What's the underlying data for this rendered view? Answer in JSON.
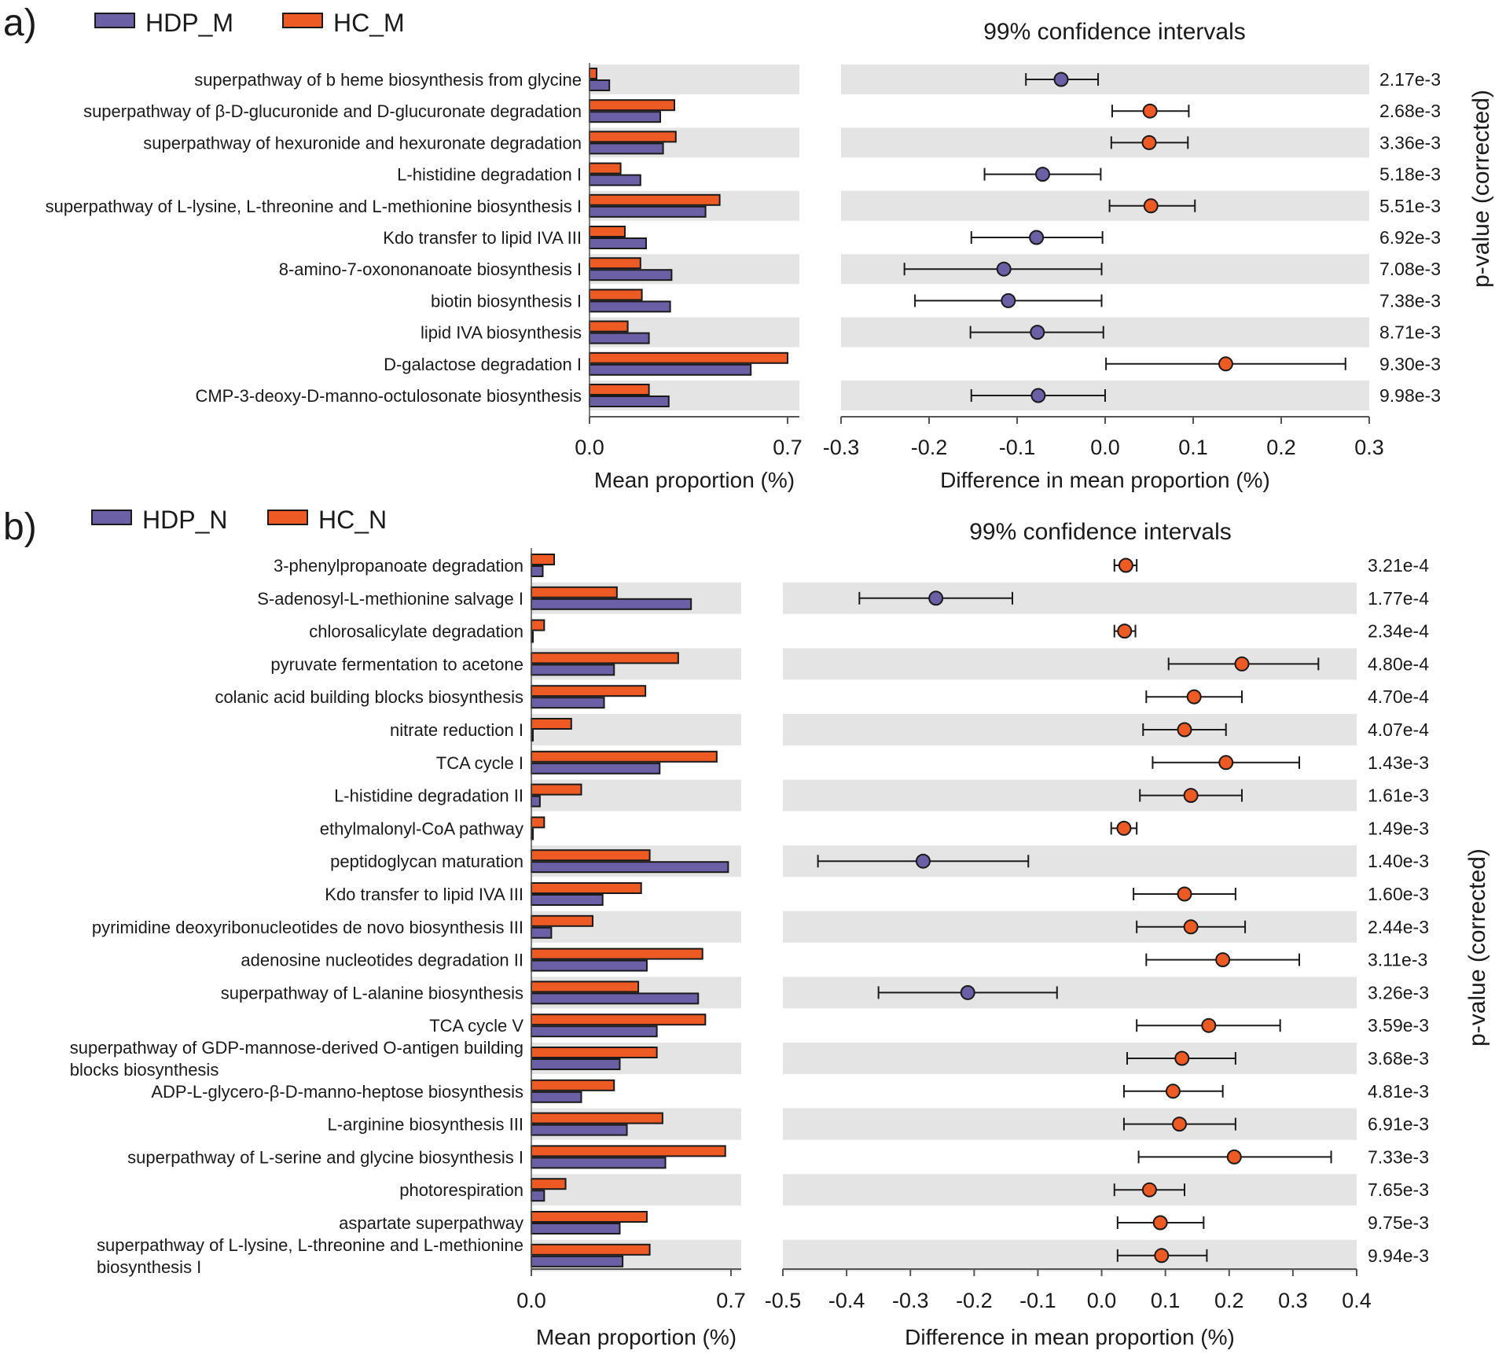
{
  "colors": {
    "hdp": "#6b5fa6",
    "hc": "#ee5a24",
    "band": "#e4e4e4",
    "axis": "#555555",
    "text": "#1a1a1a"
  },
  "chart_data": [
    {
      "type": "extended-error-bar",
      "panel_label": "a)",
      "legend": [
        "HDP_M",
        "HC_M"
      ],
      "ci_title": "99% confidence intervals",
      "bar_axis": {
        "xlabel": "Mean proportion (%)",
        "ticks": [
          "0.0",
          "0.7"
        ],
        "xlim": [
          0,
          0.7
        ]
      },
      "diff_axis": {
        "xlabel": "Difference in mean proportion (%)",
        "ticks": [
          "-0.3",
          "-0.2",
          "-0.1",
          "0.0",
          "0.1",
          "0.2",
          "0.3"
        ],
        "xlim": [
          -0.3,
          0.3
        ]
      },
      "pvalue_label": "p-value (corrected)",
      "rows": [
        {
          "name": "superpathway of b heme biosynthesis from glycine",
          "hdp": 0.07,
          "hc": 0.025,
          "diff": -0.05,
          "ci": [
            -0.09,
            -0.008
          ],
          "p": "2.17e-3"
        },
        {
          "name": "superpathway of β-D-glucuronide and D-glucuronate degradation",
          "hdp": 0.25,
          "hc": 0.3,
          "diff": 0.051,
          "ci": [
            0.008,
            0.095
          ],
          "p": "2.68e-3"
        },
        {
          "name": "superpathway of hexuronide and hexuronate degradation",
          "hdp": 0.26,
          "hc": 0.305,
          "diff": 0.05,
          "ci": [
            0.007,
            0.094
          ],
          "p": "3.36e-3"
        },
        {
          "name": "L-histidine degradation I",
          "hdp": 0.18,
          "hc": 0.11,
          "diff": -0.071,
          "ci": [
            -0.137,
            -0.005
          ],
          "p": "5.18e-3"
        },
        {
          "name": "superpathway of L-lysine, L-threonine and L-methionine biosynthesis I",
          "hdp": 0.41,
          "hc": 0.46,
          "diff": 0.052,
          "ci": [
            0.005,
            0.102
          ],
          "p": "5.51e-3"
        },
        {
          "name": "Kdo transfer to lipid IVA III",
          "hdp": 0.2,
          "hc": 0.125,
          "diff": -0.078,
          "ci": [
            -0.152,
            -0.003
          ],
          "p": "6.92e-3"
        },
        {
          "name": "8-amino-7-oxononanoate biosynthesis I",
          "hdp": 0.29,
          "hc": 0.18,
          "diff": -0.115,
          "ci": [
            -0.228,
            -0.004
          ],
          "p": "7.08e-3"
        },
        {
          "name": "biotin biosynthesis I",
          "hdp": 0.285,
          "hc": 0.185,
          "diff": -0.11,
          "ci": [
            -0.216,
            -0.004
          ],
          "p": "7.38e-3"
        },
        {
          "name": "lipid IVA biosynthesis",
          "hdp": 0.21,
          "hc": 0.135,
          "diff": -0.077,
          "ci": [
            -0.153,
            -0.002
          ],
          "p": "8.71e-3"
        },
        {
          "name": "D-galactose degradation I",
          "hdp": 0.57,
          "hc": 0.7,
          "diff": 0.137,
          "ci": [
            0.001,
            0.273
          ],
          "p": "9.30e-3"
        },
        {
          "name": "CMP-3-deoxy-D-manno-octulosonate biosynthesis",
          "hdp": 0.28,
          "hc": 0.21,
          "diff": -0.076,
          "ci": [
            -0.152,
            0.0
          ],
          "p": "9.98e-3"
        }
      ]
    },
    {
      "type": "extended-error-bar",
      "panel_label": "b)",
      "legend": [
        "HDP_N",
        "HC_N"
      ],
      "ci_title": "99% confidence intervals",
      "bar_axis": {
        "xlabel": "Mean proportion (%)",
        "ticks": [
          "0.0",
          "0.7"
        ],
        "xlim": [
          0,
          0.7
        ]
      },
      "diff_axis": {
        "xlabel": "Difference in mean proportion (%)",
        "ticks": [
          "-0.5",
          "-0.4",
          "-0.3",
          "-0.2",
          "-0.1",
          "0.0",
          "0.1",
          "0.2",
          "0.3",
          "0.4"
        ],
        "xlim": [
          -0.5,
          0.4
        ]
      },
      "pvalue_label": "p-value (corrected)",
      "rows": [
        {
          "name": "3-phenylpropanoate degradation",
          "hdp": 0.04,
          "hc": 0.08,
          "diff": 0.038,
          "ci": [
            0.02,
            0.055
          ],
          "p": "3.21e-4"
        },
        {
          "name": "S-adenosyl-L-methionine salvage I",
          "hdp": 0.56,
          "hc": 0.3,
          "diff": -0.26,
          "ci": [
            -0.38,
            -0.14
          ],
          "p": "1.77e-4"
        },
        {
          "name": "chlorosalicylate degradation",
          "hdp": 0.005,
          "hc": 0.045,
          "diff": 0.036,
          "ci": [
            0.02,
            0.053
          ],
          "p": "2.34e-4"
        },
        {
          "name": "pyruvate fermentation to acetone",
          "hdp": 0.29,
          "hc": 0.515,
          "diff": 0.22,
          "ci": [
            0.105,
            0.34
          ],
          "p": "4.80e-4"
        },
        {
          "name": "colanic acid building blocks biosynthesis",
          "hdp": 0.255,
          "hc": 0.4,
          "diff": 0.145,
          "ci": [
            0.07,
            0.22
          ],
          "p": "4.70e-4"
        },
        {
          "name": "nitrate reduction I",
          "hdp": 0.005,
          "hc": 0.14,
          "diff": 0.13,
          "ci": [
            0.065,
            0.195
          ],
          "p": "4.07e-4"
        },
        {
          "name": "TCA cycle I",
          "hdp": 0.45,
          "hc": 0.65,
          "diff": 0.195,
          "ci": [
            0.08,
            0.31
          ],
          "p": "1.43e-3"
        },
        {
          "name": "L-histidine degradation II",
          "hdp": 0.03,
          "hc": 0.175,
          "diff": 0.14,
          "ci": [
            0.06,
            0.22
          ],
          "p": "1.61e-3"
        },
        {
          "name": "ethylmalonyl-CoA pathway",
          "hdp": 0.005,
          "hc": 0.045,
          "diff": 0.035,
          "ci": [
            0.015,
            0.055
          ],
          "p": "1.49e-3"
        },
        {
          "name": "peptidoglycan maturation",
          "hdp": 0.69,
          "hc": 0.415,
          "diff": -0.28,
          "ci": [
            -0.445,
            -0.115
          ],
          "p": "1.40e-3"
        },
        {
          "name": "Kdo transfer to lipid IVA III",
          "hdp": 0.25,
          "hc": 0.385,
          "diff": 0.13,
          "ci": [
            0.05,
            0.21
          ],
          "p": "1.60e-3"
        },
        {
          "name": "pyrimidine deoxyribonucleotides de novo biosynthesis III",
          "hdp": 0.07,
          "hc": 0.215,
          "diff": 0.14,
          "ci": [
            0.055,
            0.225
          ],
          "p": "2.44e-3"
        },
        {
          "name": "adenosine nucleotides degradation II",
          "hdp": 0.405,
          "hc": 0.6,
          "diff": 0.19,
          "ci": [
            0.07,
            0.31
          ],
          "p": "3.11e-3"
        },
        {
          "name": "superpathway of L-alanine biosynthesis",
          "hdp": 0.585,
          "hc": 0.375,
          "diff": -0.21,
          "ci": [
            -0.35,
            -0.07
          ],
          "p": "3.26e-3"
        },
        {
          "name": "TCA cycle V",
          "hdp": 0.44,
          "hc": 0.61,
          "diff": 0.168,
          "ci": [
            0.055,
            0.28
          ],
          "p": "3.59e-3"
        },
        {
          "name": "superpathway of GDP-mannose-derived O-antigen building blocks biosynthesis",
          "label_lines": [
            "superpathway of GDP-mannose-derived O-antigen building",
            "blocks biosynthesis"
          ],
          "hdp": 0.31,
          "hc": 0.44,
          "diff": 0.126,
          "ci": [
            0.04,
            0.21
          ],
          "p": "3.68e-3"
        },
        {
          "name": "ADP-L-glycero-β-D-manno-heptose biosynthesis",
          "hdp": 0.175,
          "hc": 0.29,
          "diff": 0.112,
          "ci": [
            0.035,
            0.19
          ],
          "p": "4.81e-3"
        },
        {
          "name": "L-arginine biosynthesis III",
          "hdp": 0.335,
          "hc": 0.46,
          "diff": 0.122,
          "ci": [
            0.035,
            0.21
          ],
          "p": "6.91e-3"
        },
        {
          "name": "superpathway of L-serine and glycine biosynthesis I",
          "hdp": 0.47,
          "hc": 0.68,
          "diff": 0.208,
          "ci": [
            0.058,
            0.36
          ],
          "p": "7.33e-3"
        },
        {
          "name": "photorespiration",
          "hdp": 0.045,
          "hc": 0.12,
          "diff": 0.075,
          "ci": [
            0.02,
            0.13
          ],
          "p": "7.65e-3"
        },
        {
          "name": "aspartate superpathway",
          "hdp": 0.31,
          "hc": 0.405,
          "diff": 0.092,
          "ci": [
            0.025,
            0.16
          ],
          "p": "9.75e-3"
        },
        {
          "name": "superpathway of L-lysine, L-threonine and L-methionine biosynthesis I",
          "label_lines": [
            "superpathway of L-lysine, L-threonine and L-methionine",
            "biosynthesis I"
          ],
          "hdp": 0.32,
          "hc": 0.415,
          "diff": 0.094,
          "ci": [
            0.025,
            0.165
          ],
          "p": "9.94e-3"
        }
      ]
    }
  ]
}
